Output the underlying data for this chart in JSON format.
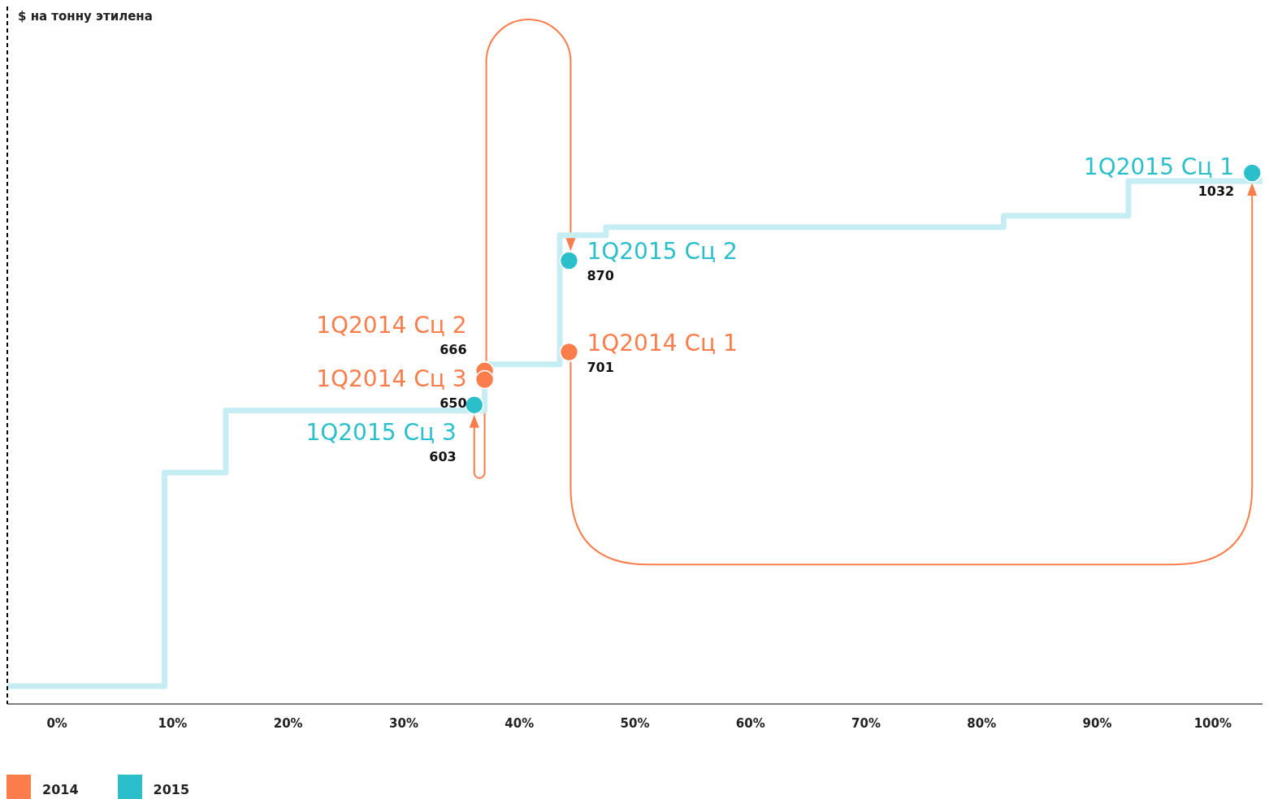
{
  "chart_data": {
    "type": "step",
    "ylabel": "$ на тонну этилена",
    "xlim": [
      -4.3,
      104.3
    ],
    "ylim": [
      50,
      1340
    ],
    "xticks": [
      {
        "value": 0,
        "label": "0%"
      },
      {
        "value": 10,
        "label": "10%"
      },
      {
        "value": 20,
        "label": "20%"
      },
      {
        "value": 30,
        "label": "30%"
      },
      {
        "value": 40,
        "label": "40%"
      },
      {
        "value": 50,
        "label": "50%"
      },
      {
        "value": 60,
        "label": "60%"
      },
      {
        "value": 70,
        "label": "70%"
      },
      {
        "value": 80,
        "label": "80%"
      },
      {
        "value": 90,
        "label": "90%"
      },
      {
        "value": 100,
        "label": "100%"
      }
    ],
    "tick_labels": "x",
    "grid": false,
    "legend": "bottom left",
    "line_style": "solid",
    "series": [
      {
        "color": "#c6edf3",
        "x": [
          -4.3,
          9.3,
          14.6,
          37.0,
          43.5,
          47.5,
          81.9,
          92.7,
          104.3
        ],
        "values": [
          83,
          478,
          593,
          678,
          917,
          932,
          953,
          1017,
          1017
        ]
      },
      {
        "type": "scatter",
        "marker": "circle",
        "name": "2014",
        "color": "#fb7d4c",
        "x": [
          44.3,
          37.0,
          37.0
        ],
        "values": [
          701,
          666,
          650
        ],
        "value_labels": [
          "701",
          "666",
          "650"
        ]
      },
      {
        "type": "scatter",
        "marker": "circle",
        "name": "2015",
        "color": "#2bbfcc",
        "x": [
          103.4,
          44.3,
          36.1
        ],
        "values": [
          1032,
          870,
          603
        ],
        "value_labels": [
          "1032",
          "870",
          "603"
        ]
      }
    ],
    "annotations": [
      {
        "text": "1Q2014 Сц 1",
        "x": 44.3,
        "y": 701
      },
      {
        "text": "1Q2014 Сц 2",
        "x": 37.0,
        "y": 666
      },
      {
        "text": "1Q2014 Сц 3",
        "x": 37.0,
        "y": 650
      },
      {
        "text": "1Q2015 Сц 1",
        "x": 103.4,
        "y": 1032
      },
      {
        "text": "1Q2015 Сц 2",
        "x": 44.3,
        "y": 870
      },
      {
        "text": "1Q2015 Сц 3",
        "x": 36.1,
        "y": 603
      }
    ]
  }
}
